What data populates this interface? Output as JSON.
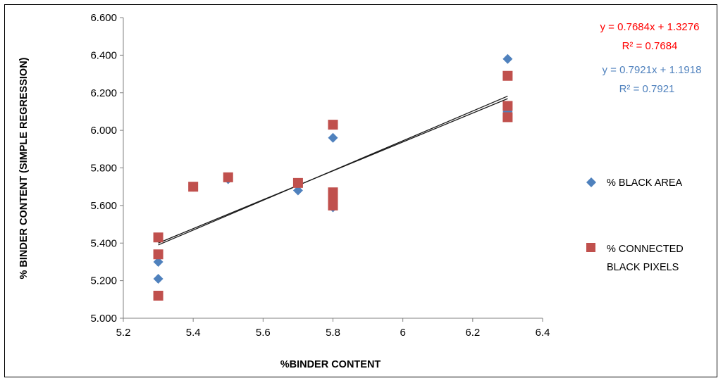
{
  "chart_data": {
    "type": "scatter",
    "xlabel": "%BINDER CONTENT",
    "ylabel": "% BINDER CONTENT (SIMPLE REGRESSION)",
    "xlim": [
      5.2,
      6.4
    ],
    "ylim": [
      5.0,
      6.6
    ],
    "xticks": [
      "5.2",
      "5.4",
      "5.6",
      "5.8",
      "6",
      "6.2",
      "6.4"
    ],
    "yticks": [
      "5.000",
      "5.200",
      "5.400",
      "5.600",
      "5.800",
      "6.000",
      "6.200",
      "6.400",
      "6.600"
    ],
    "grid": false,
    "legend_position": "right",
    "series": [
      {
        "name": "% BLACK AREA",
        "marker": "diamond",
        "color": "#4F81BD",
        "points": [
          [
            5.3,
            5.3
          ],
          [
            5.3,
            5.21
          ],
          [
            5.4,
            5.7
          ],
          [
            5.5,
            5.74
          ],
          [
            5.7,
            5.68
          ],
          [
            5.8,
            5.96
          ],
          [
            5.8,
            5.59
          ],
          [
            6.3,
            6.38
          ],
          [
            6.3,
            6.1
          ]
        ],
        "trendline": {
          "slope": 0.7921,
          "intercept": 1.1918
        },
        "equation": "y = 0.7921x + 1.1918",
        "r2_label": "R² = 0.7921"
      },
      {
        "name": "% CONNECTED BLACK PIXELS",
        "marker": "square",
        "color": "#C0504D",
        "points": [
          [
            5.3,
            5.43
          ],
          [
            5.3,
            5.34
          ],
          [
            5.3,
            5.12
          ],
          [
            5.4,
            5.7
          ],
          [
            5.5,
            5.75
          ],
          [
            5.7,
            5.72
          ],
          [
            5.8,
            6.03
          ],
          [
            5.8,
            5.67
          ],
          [
            5.8,
            5.63
          ],
          [
            5.8,
            5.6
          ],
          [
            6.3,
            6.29
          ],
          [
            6.3,
            6.13
          ],
          [
            6.3,
            6.07
          ]
        ],
        "trendline": {
          "slope": 0.7684,
          "intercept": 1.3276
        },
        "equation": "y = 0.7684x + 1.3276",
        "r2_label": "R² = 0.7684"
      }
    ],
    "trendline_color": "#1a1a1a"
  }
}
